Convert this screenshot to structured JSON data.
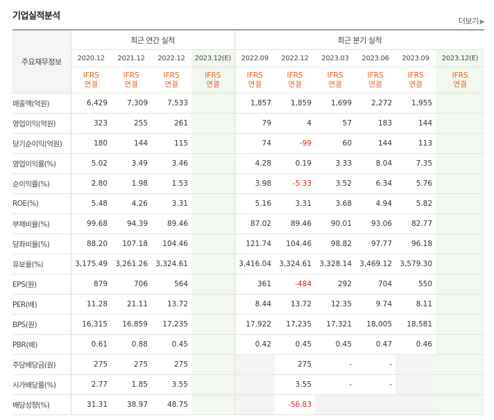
{
  "header": {
    "title": "기업실적분석",
    "more": "더보기"
  },
  "table": {
    "row_header": "주요재무정보",
    "group_annual": "최근 연간 실적",
    "group_quarter": "최근 분기 실적",
    "periods": [
      "2020.12",
      "2021.12",
      "2022.12",
      "2023.12(E)",
      "2022.09",
      "2022.12",
      "2023.03",
      "2023.06",
      "2023.09",
      "2023.12(E)"
    ],
    "ifrs_line1": "IFRS",
    "ifrs_line2": "연결",
    "rows": [
      {
        "label": "매출액(억원)",
        "values": [
          "6,429",
          "7,309",
          "7,533",
          "",
          "1,857",
          "1,859",
          "1,699",
          "2,272",
          "1,955",
          ""
        ]
      },
      {
        "label": "영업이익(억원)",
        "values": [
          "323",
          "255",
          "261",
          "",
          "79",
          "4",
          "57",
          "183",
          "144",
          ""
        ]
      },
      {
        "label": "당기순이익(억원)",
        "values": [
          "180",
          "144",
          "115",
          "",
          "74",
          "-99",
          "60",
          "144",
          "113",
          ""
        ]
      },
      {
        "label": "영업이익률(%)",
        "values": [
          "5.02",
          "3.49",
          "3.46",
          "",
          "4.28",
          "0.19",
          "3.33",
          "8.04",
          "7.35",
          ""
        ]
      },
      {
        "label": "순이익률(%)",
        "values": [
          "2.80",
          "1.98",
          "1.53",
          "",
          "3.98",
          "-5.33",
          "3.52",
          "6.34",
          "5.76",
          ""
        ]
      },
      {
        "label": "ROE(%)",
        "values": [
          "5.48",
          "4.26",
          "3.31",
          "",
          "5.16",
          "3.31",
          "3.68",
          "4.94",
          "5.82",
          ""
        ]
      },
      {
        "label": "부채비율(%)",
        "values": [
          "99.68",
          "94.39",
          "89.46",
          "",
          "87.02",
          "89.46",
          "90.01",
          "93.06",
          "82.77",
          ""
        ]
      },
      {
        "label": "당좌비율(%)",
        "values": [
          "88.20",
          "107.18",
          "104.46",
          "",
          "121.74",
          "104.46",
          "98.82",
          "97.77",
          "96.18",
          ""
        ]
      },
      {
        "label": "유보율(%)",
        "values": [
          "3,175.49",
          "3,261.26",
          "3,324.61",
          "",
          "3,416.04",
          "3,324.61",
          "3,328.14",
          "3,469.12",
          "3,579.30",
          ""
        ]
      },
      {
        "label": "EPS(원)",
        "values": [
          "879",
          "706",
          "564",
          "",
          "361",
          "-484",
          "292",
          "704",
          "550",
          ""
        ]
      },
      {
        "label": "PER(배)",
        "values": [
          "11.28",
          "21.11",
          "13.72",
          "",
          "8.44",
          "13.72",
          "12.35",
          "9.74",
          "8.11",
          ""
        ]
      },
      {
        "label": "BPS(원)",
        "values": [
          "16,315",
          "16,859",
          "17,235",
          "",
          "17,922",
          "17,235",
          "17,321",
          "18,005",
          "18,581",
          ""
        ]
      },
      {
        "label": "PBR(배)",
        "values": [
          "0.61",
          "0.88",
          "0.45",
          "",
          "0.42",
          "0.45",
          "0.45",
          "0.47",
          "0.46",
          ""
        ]
      },
      {
        "label": "주당배당금(원)",
        "values": [
          "275",
          "275",
          "275",
          "",
          "",
          "275",
          "-",
          "-",
          "",
          ""
        ]
      },
      {
        "label": "시가배당률(%)",
        "values": [
          "2.77",
          "1.85",
          "3.55",
          "",
          "",
          "3.55",
          "-",
          "-",
          "",
          ""
        ]
      },
      {
        "label": "배당성향(%)",
        "values": [
          "31.31",
          "38.97",
          "48.75",
          "",
          "",
          "-56.83",
          "",
          "",
          "",
          ""
        ]
      }
    ]
  },
  "colors": {
    "ifrs": "#e8601e",
    "estimate_bg": "#f2f8ef",
    "estimate_text": "#3a8c2f",
    "negative": "#e2231a",
    "empty_bg": "#f4f4f4"
  }
}
